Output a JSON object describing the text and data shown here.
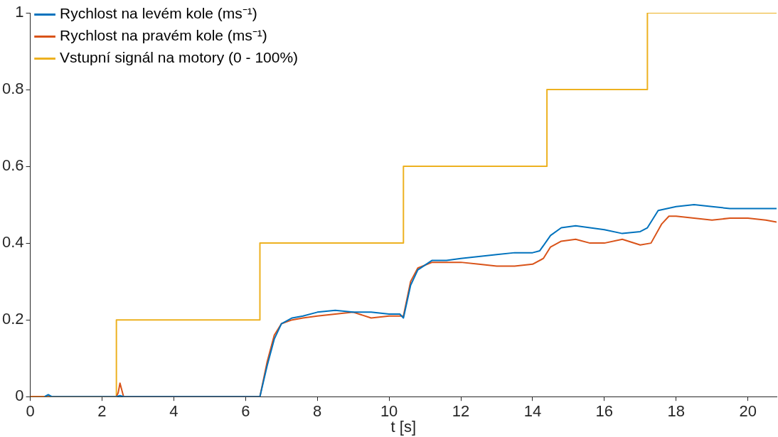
{
  "chart_data": {
    "type": "line",
    "xlabel": "t [s]",
    "xlim": [
      0,
      20.8
    ],
    "xticks": [
      0,
      2,
      4,
      6,
      8,
      10,
      12,
      14,
      16,
      18,
      20
    ],
    "ylim": [
      0,
      1
    ],
    "yticks": [
      0,
      0.2,
      0.4,
      0.6,
      0.8,
      1
    ],
    "grid": false,
    "legend": "top left",
    "marker": "none",
    "line_style": "solid",
    "series": [
      {
        "name": "Rychlost na levém kole (ms⁻¹)",
        "color": "#0072bd",
        "x": [
          0.4,
          0.5,
          0.6,
          2.4,
          2.5,
          2.6,
          6.4,
          6.6,
          6.8,
          7.0,
          7.3,
          7.6,
          8.0,
          8.5,
          9.0,
          9.5,
          10.0,
          10.3,
          10.4,
          10.6,
          10.8,
          11.2,
          11.6,
          12.0,
          12.5,
          13.0,
          13.5,
          14.0,
          14.2,
          14.5,
          14.8,
          15.2,
          15.6,
          16.0,
          16.5,
          17.0,
          17.2,
          17.5,
          18.0,
          18.5,
          19.0,
          19.5,
          20.0,
          20.5,
          20.8
        ],
        "values": [
          0,
          0.005,
          0,
          0,
          0.003,
          0,
          0,
          0.08,
          0.15,
          0.19,
          0.205,
          0.21,
          0.22,
          0.225,
          0.22,
          0.22,
          0.215,
          0.215,
          0.205,
          0.29,
          0.33,
          0.355,
          0.355,
          0.36,
          0.365,
          0.37,
          0.375,
          0.375,
          0.38,
          0.42,
          0.44,
          0.445,
          0.44,
          0.435,
          0.425,
          0.43,
          0.44,
          0.485,
          0.495,
          0.5,
          0.495,
          0.49,
          0.49,
          0.49,
          0.49
        ]
      },
      {
        "name": "Rychlost na pravém kole (ms⁻¹)",
        "color": "#d95319",
        "x": [
          0,
          2.4,
          2.45,
          2.5,
          2.6,
          6.4,
          6.6,
          6.8,
          7.0,
          7.3,
          7.6,
          8.0,
          8.5,
          9.0,
          9.5,
          10.0,
          10.3,
          10.4,
          10.6,
          10.8,
          11.2,
          11.6,
          12.0,
          12.5,
          13.0,
          13.5,
          14.0,
          14.3,
          14.5,
          14.8,
          15.2,
          15.6,
          16.0,
          16.5,
          17.0,
          17.3,
          17.6,
          17.8,
          18.0,
          18.5,
          19.0,
          19.5,
          20.0,
          20.5,
          20.8
        ],
        "values": [
          0,
          0,
          0.01,
          0.035,
          0,
          0,
          0.09,
          0.16,
          0.19,
          0.2,
          0.205,
          0.21,
          0.215,
          0.22,
          0.205,
          0.21,
          0.21,
          0.21,
          0.3,
          0.335,
          0.35,
          0.35,
          0.35,
          0.345,
          0.34,
          0.34,
          0.345,
          0.36,
          0.39,
          0.405,
          0.41,
          0.4,
          0.4,
          0.41,
          0.395,
          0.4,
          0.45,
          0.47,
          0.47,
          0.465,
          0.46,
          0.465,
          0.465,
          0.46,
          0.455
        ]
      },
      {
        "name": "Vstupní signál na motory (0 - 100%)",
        "color": "#edb120",
        "type": "step",
        "x": [
          0,
          2.4,
          6.4,
          10.4,
          14.4,
          17.2,
          20.8
        ],
        "values": [
          0,
          0.2,
          0.4,
          0.6,
          0.8,
          1,
          1
        ]
      }
    ]
  }
}
